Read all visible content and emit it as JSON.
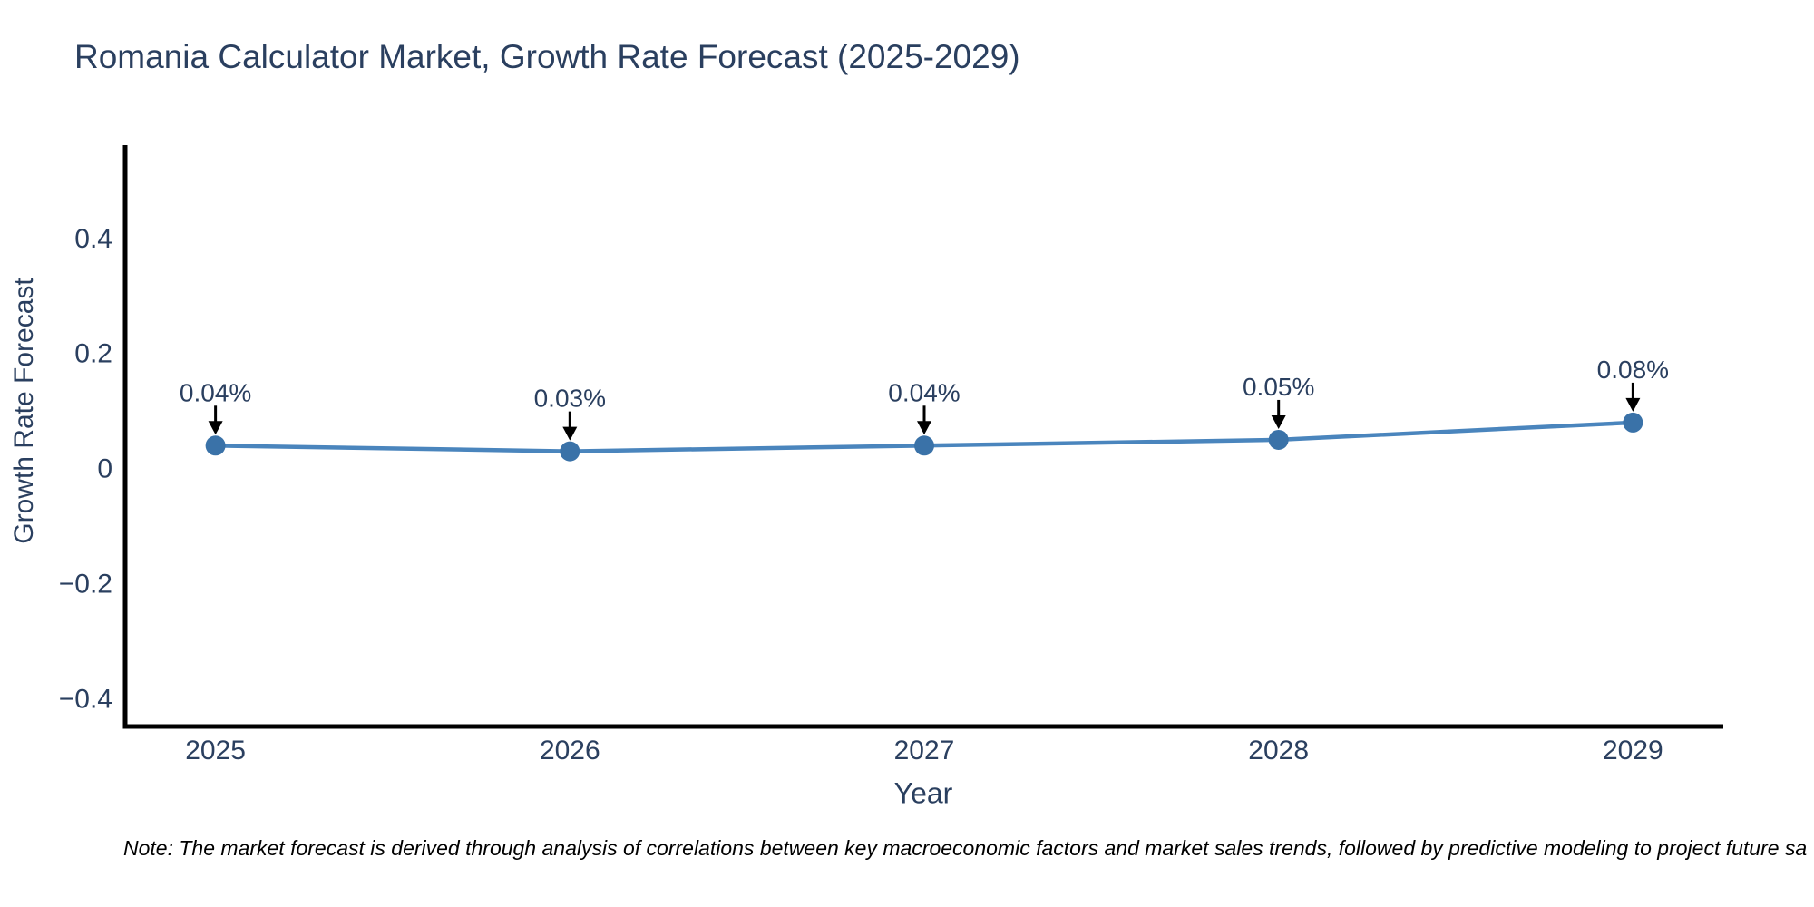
{
  "chart_data": {
    "type": "line",
    "title": "Romania Calculator Market, Growth Rate Forecast (2025-2029)",
    "xlabel": "Year",
    "ylabel": "Growth Rate Forecast",
    "x": [
      2025,
      2026,
      2027,
      2028,
      2029
    ],
    "series": [
      {
        "name": "Growth Rate Forecast",
        "values": [
          0.04,
          0.03,
          0.04,
          0.05,
          0.08
        ],
        "point_labels": [
          "0.04%",
          "0.03%",
          "0.04%",
          "0.05%",
          "0.08%"
        ]
      }
    ],
    "xtick_labels": [
      "2025",
      "2026",
      "2027",
      "2028",
      "2029"
    ],
    "ytick_values": [
      0.4,
      0.2,
      0,
      -0.2,
      -0.4
    ],
    "ytick_labels": [
      "0.4",
      "0.2",
      "0",
      "−0.2",
      "−0.4"
    ],
    "xlim": [
      2024.745,
      2029.255
    ],
    "ylim": [
      -0.448,
      0.562
    ],
    "grid": false,
    "legend_position": "none",
    "colors": {
      "line": "#4a85bd",
      "marker": "#3a72a8",
      "axis_line": "#000000",
      "text": "#2a3f5f",
      "annotation_arrow": "#000000",
      "background": "#ffffff"
    }
  },
  "note": {
    "text": "Note: The market forecast is derived through analysis of correlations between key macroeconomic factors and market sales trends, followed by predictive modeling to project future sa"
  }
}
